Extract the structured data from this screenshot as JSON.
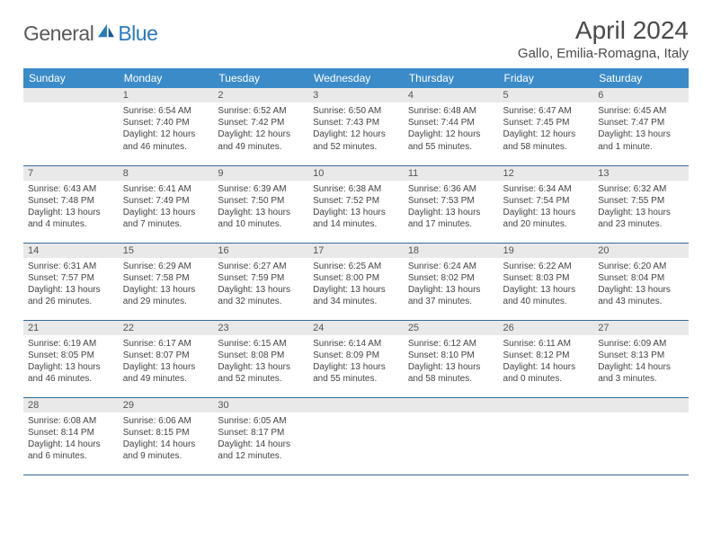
{
  "logo": {
    "part1": "General",
    "part2": "Blue"
  },
  "title": "April 2024",
  "location": "Gallo, Emilia-Romagna, Italy",
  "colors": {
    "header_bg": "#3b8bc9",
    "header_text": "#ffffff",
    "daynum_bg": "#e9e9e9",
    "rule": "#346a99",
    "text": "#444444",
    "logo_gray": "#5a5a5a",
    "logo_blue": "#2a7abf"
  },
  "weekdays": [
    "Sunday",
    "Monday",
    "Tuesday",
    "Wednesday",
    "Thursday",
    "Friday",
    "Saturday"
  ],
  "weeks": [
    [
      {
        "n": "",
        "sunrise": "",
        "sunset": "",
        "daylight": ""
      },
      {
        "n": "1",
        "sunrise": "Sunrise: 6:54 AM",
        "sunset": "Sunset: 7:40 PM",
        "daylight": "Daylight: 12 hours and 46 minutes."
      },
      {
        "n": "2",
        "sunrise": "Sunrise: 6:52 AM",
        "sunset": "Sunset: 7:42 PM",
        "daylight": "Daylight: 12 hours and 49 minutes."
      },
      {
        "n": "3",
        "sunrise": "Sunrise: 6:50 AM",
        "sunset": "Sunset: 7:43 PM",
        "daylight": "Daylight: 12 hours and 52 minutes."
      },
      {
        "n": "4",
        "sunrise": "Sunrise: 6:48 AM",
        "sunset": "Sunset: 7:44 PM",
        "daylight": "Daylight: 12 hours and 55 minutes."
      },
      {
        "n": "5",
        "sunrise": "Sunrise: 6:47 AM",
        "sunset": "Sunset: 7:45 PM",
        "daylight": "Daylight: 12 hours and 58 minutes."
      },
      {
        "n": "6",
        "sunrise": "Sunrise: 6:45 AM",
        "sunset": "Sunset: 7:47 PM",
        "daylight": "Daylight: 13 hours and 1 minute."
      }
    ],
    [
      {
        "n": "7",
        "sunrise": "Sunrise: 6:43 AM",
        "sunset": "Sunset: 7:48 PM",
        "daylight": "Daylight: 13 hours and 4 minutes."
      },
      {
        "n": "8",
        "sunrise": "Sunrise: 6:41 AM",
        "sunset": "Sunset: 7:49 PM",
        "daylight": "Daylight: 13 hours and 7 minutes."
      },
      {
        "n": "9",
        "sunrise": "Sunrise: 6:39 AM",
        "sunset": "Sunset: 7:50 PM",
        "daylight": "Daylight: 13 hours and 10 minutes."
      },
      {
        "n": "10",
        "sunrise": "Sunrise: 6:38 AM",
        "sunset": "Sunset: 7:52 PM",
        "daylight": "Daylight: 13 hours and 14 minutes."
      },
      {
        "n": "11",
        "sunrise": "Sunrise: 6:36 AM",
        "sunset": "Sunset: 7:53 PM",
        "daylight": "Daylight: 13 hours and 17 minutes."
      },
      {
        "n": "12",
        "sunrise": "Sunrise: 6:34 AM",
        "sunset": "Sunset: 7:54 PM",
        "daylight": "Daylight: 13 hours and 20 minutes."
      },
      {
        "n": "13",
        "sunrise": "Sunrise: 6:32 AM",
        "sunset": "Sunset: 7:55 PM",
        "daylight": "Daylight: 13 hours and 23 minutes."
      }
    ],
    [
      {
        "n": "14",
        "sunrise": "Sunrise: 6:31 AM",
        "sunset": "Sunset: 7:57 PM",
        "daylight": "Daylight: 13 hours and 26 minutes."
      },
      {
        "n": "15",
        "sunrise": "Sunrise: 6:29 AM",
        "sunset": "Sunset: 7:58 PM",
        "daylight": "Daylight: 13 hours and 29 minutes."
      },
      {
        "n": "16",
        "sunrise": "Sunrise: 6:27 AM",
        "sunset": "Sunset: 7:59 PM",
        "daylight": "Daylight: 13 hours and 32 minutes."
      },
      {
        "n": "17",
        "sunrise": "Sunrise: 6:25 AM",
        "sunset": "Sunset: 8:00 PM",
        "daylight": "Daylight: 13 hours and 34 minutes."
      },
      {
        "n": "18",
        "sunrise": "Sunrise: 6:24 AM",
        "sunset": "Sunset: 8:02 PM",
        "daylight": "Daylight: 13 hours and 37 minutes."
      },
      {
        "n": "19",
        "sunrise": "Sunrise: 6:22 AM",
        "sunset": "Sunset: 8:03 PM",
        "daylight": "Daylight: 13 hours and 40 minutes."
      },
      {
        "n": "20",
        "sunrise": "Sunrise: 6:20 AM",
        "sunset": "Sunset: 8:04 PM",
        "daylight": "Daylight: 13 hours and 43 minutes."
      }
    ],
    [
      {
        "n": "21",
        "sunrise": "Sunrise: 6:19 AM",
        "sunset": "Sunset: 8:05 PM",
        "daylight": "Daylight: 13 hours and 46 minutes."
      },
      {
        "n": "22",
        "sunrise": "Sunrise: 6:17 AM",
        "sunset": "Sunset: 8:07 PM",
        "daylight": "Daylight: 13 hours and 49 minutes."
      },
      {
        "n": "23",
        "sunrise": "Sunrise: 6:15 AM",
        "sunset": "Sunset: 8:08 PM",
        "daylight": "Daylight: 13 hours and 52 minutes."
      },
      {
        "n": "24",
        "sunrise": "Sunrise: 6:14 AM",
        "sunset": "Sunset: 8:09 PM",
        "daylight": "Daylight: 13 hours and 55 minutes."
      },
      {
        "n": "25",
        "sunrise": "Sunrise: 6:12 AM",
        "sunset": "Sunset: 8:10 PM",
        "daylight": "Daylight: 13 hours and 58 minutes."
      },
      {
        "n": "26",
        "sunrise": "Sunrise: 6:11 AM",
        "sunset": "Sunset: 8:12 PM",
        "daylight": "Daylight: 14 hours and 0 minutes."
      },
      {
        "n": "27",
        "sunrise": "Sunrise: 6:09 AM",
        "sunset": "Sunset: 8:13 PM",
        "daylight": "Daylight: 14 hours and 3 minutes."
      }
    ],
    [
      {
        "n": "28",
        "sunrise": "Sunrise: 6:08 AM",
        "sunset": "Sunset: 8:14 PM",
        "daylight": "Daylight: 14 hours and 6 minutes."
      },
      {
        "n": "29",
        "sunrise": "Sunrise: 6:06 AM",
        "sunset": "Sunset: 8:15 PM",
        "daylight": "Daylight: 14 hours and 9 minutes."
      },
      {
        "n": "30",
        "sunrise": "Sunrise: 6:05 AM",
        "sunset": "Sunset: 8:17 PM",
        "daylight": "Daylight: 14 hours and 12 minutes."
      },
      {
        "n": "",
        "sunrise": "",
        "sunset": "",
        "daylight": ""
      },
      {
        "n": "",
        "sunrise": "",
        "sunset": "",
        "daylight": ""
      },
      {
        "n": "",
        "sunrise": "",
        "sunset": "",
        "daylight": ""
      },
      {
        "n": "",
        "sunrise": "",
        "sunset": "",
        "daylight": ""
      }
    ]
  ]
}
